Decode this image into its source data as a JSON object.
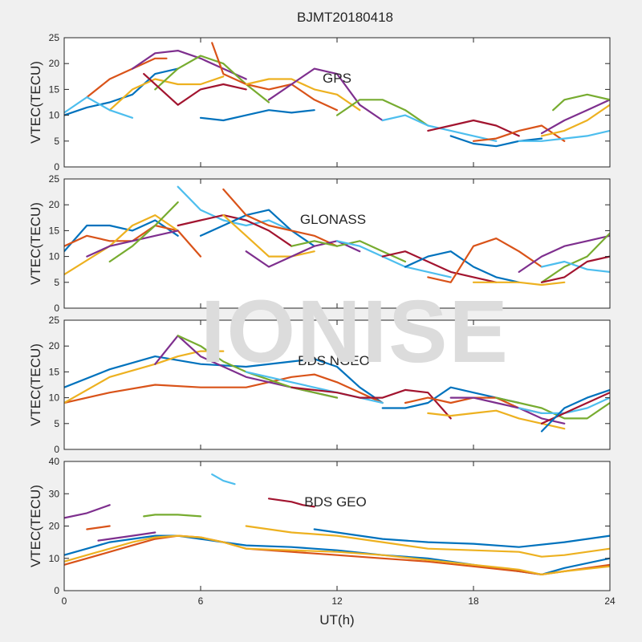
{
  "figure": {
    "title": "BJMT20180418",
    "watermark": "IONISE"
  },
  "colors": [
    "#0072BD",
    "#D95319",
    "#EDB120",
    "#7E2F8E",
    "#77AC30",
    "#4DBEEE",
    "#A2142F"
  ],
  "chart_data": [
    {
      "type": "line",
      "title": "BJMT20180418",
      "annotation": "GPS",
      "xlabel": "",
      "ylabel": "VTEC(TECU)",
      "xlim": [
        0,
        24
      ],
      "ylim": [
        0,
        25
      ],
      "xticks": [
        0,
        6,
        12,
        18,
        24
      ],
      "yticks": [
        0,
        5,
        10,
        15,
        20,
        25
      ],
      "series": [
        {
          "x": [
            0,
            1,
            2,
            3,
            4,
            5
          ],
          "y": [
            10,
            11.5,
            12.5,
            14,
            18,
            19
          ]
        },
        {
          "x": [
            1,
            2,
            3,
            4,
            4.5
          ],
          "y": [
            13.5,
            17,
            19,
            21,
            21
          ]
        },
        {
          "x": [
            2,
            3,
            4,
            5,
            6,
            7
          ],
          "y": [
            11,
            15,
            17,
            16,
            16,
            17.5
          ]
        },
        {
          "x": [
            3,
            4,
            5,
            6,
            7,
            8
          ],
          "y": [
            19,
            22,
            22.5,
            21,
            19,
            17
          ]
        },
        {
          "x": [
            4,
            5,
            6,
            7,
            8,
            9
          ],
          "y": [
            15,
            19,
            21.5,
            20,
            16,
            12.5
          ]
        },
        {
          "x": [
            0,
            1,
            2,
            3
          ],
          "y": [
            10.5,
            13.5,
            11,
            9.5
          ]
        },
        {
          "x": [
            3.5,
            5,
            6,
            7,
            8
          ],
          "y": [
            18,
            12,
            15,
            16,
            15
          ]
        },
        {
          "x": [
            6,
            7,
            8,
            9,
            10,
            11
          ],
          "y": [
            9.5,
            9,
            10,
            11,
            10.5,
            11
          ]
        },
        {
          "x": [
            6.5,
            7,
            8,
            9,
            10,
            11,
            12
          ],
          "y": [
            24,
            18,
            16,
            15,
            16,
            13,
            11
          ]
        },
        {
          "x": [
            8,
            9,
            10,
            11,
            12,
            13
          ],
          "y": [
            16,
            17,
            17,
            15,
            14,
            11
          ]
        },
        {
          "x": [
            9,
            10,
            11,
            12,
            13,
            14
          ],
          "y": [
            13,
            16,
            19,
            18,
            12,
            9
          ]
        },
        {
          "x": [
            12,
            13,
            14,
            15,
            16
          ],
          "y": [
            10,
            13,
            13,
            11,
            8
          ]
        },
        {
          "x": [
            14,
            15,
            16,
            17,
            18,
            19
          ],
          "y": [
            9,
            10,
            8,
            7,
            6,
            5
          ]
        },
        {
          "x": [
            16,
            17,
            18,
            19,
            20
          ],
          "y": [
            7,
            8,
            9,
            8,
            6
          ]
        },
        {
          "x": [
            17,
            18,
            19,
            20,
            21
          ],
          "y": [
            6,
            4.5,
            4,
            5,
            5.5
          ]
        },
        {
          "x": [
            18,
            19,
            20,
            21,
            22
          ],
          "y": [
            5,
            5.5,
            7,
            8,
            5
          ]
        },
        {
          "x": [
            21,
            22,
            23,
            24
          ],
          "y": [
            6,
            7,
            9,
            12
          ]
        },
        {
          "x": [
            21,
            22,
            23,
            24
          ],
          "y": [
            6.5,
            9,
            11,
            13
          ]
        },
        {
          "x": [
            21.5,
            22,
            23,
            24
          ],
          "y": [
            11,
            13,
            14,
            13
          ]
        },
        {
          "x": [
            20,
            21,
            22,
            23,
            24
          ],
          "y": [
            5,
            5,
            5.5,
            6,
            7
          ]
        }
      ]
    },
    {
      "type": "line",
      "annotation": "GLONASS",
      "xlabel": "",
      "ylabel": "VTEC(TECU)",
      "xlim": [
        0,
        24
      ],
      "ylim": [
        0,
        25
      ],
      "xticks": [
        0,
        6,
        12,
        18,
        24
      ],
      "yticks": [
        0,
        5,
        10,
        15,
        20,
        25
      ],
      "series": [
        {
          "x": [
            0,
            1,
            2,
            3,
            4,
            5
          ],
          "y": [
            11,
            16,
            16,
            15,
            17,
            14
          ]
        },
        {
          "x": [
            0,
            1,
            2,
            3,
            4,
            5,
            6
          ],
          "y": [
            12,
            14,
            13,
            13,
            16,
            15,
            10
          ]
        },
        {
          "x": [
            0,
            2,
            3,
            4,
            5
          ],
          "y": [
            6.5,
            12,
            16,
            18,
            15
          ]
        },
        {
          "x": [
            1,
            2,
            3,
            4,
            5
          ],
          "y": [
            10,
            12,
            13,
            14,
            15
          ]
        },
        {
          "x": [
            2,
            3,
            4,
            5
          ],
          "y": [
            9,
            12,
            16,
            20.5
          ]
        },
        {
          "x": [
            5,
            6,
            7,
            8,
            9,
            10
          ],
          "y": [
            23.5,
            19,
            17,
            16,
            17,
            15
          ]
        },
        {
          "x": [
            5,
            6,
            7,
            8,
            9,
            10
          ],
          "y": [
            16,
            17,
            18,
            17,
            15,
            12
          ]
        },
        {
          "x": [
            6,
            7,
            8,
            9,
            10,
            11
          ],
          "y": [
            14,
            16,
            18,
            19,
            15,
            12
          ]
        },
        {
          "x": [
            7,
            8,
            9,
            10,
            11,
            12
          ],
          "y": [
            23,
            18,
            16,
            15,
            14,
            12
          ]
        },
        {
          "x": [
            7,
            8,
            9,
            10,
            11
          ],
          "y": [
            18,
            14,
            10,
            10,
            11
          ]
        },
        {
          "x": [
            8,
            9,
            10,
            11,
            12,
            13
          ],
          "y": [
            11,
            8,
            10,
            12,
            13,
            11
          ]
        },
        {
          "x": [
            10,
            11,
            12,
            13,
            14,
            15
          ],
          "y": [
            12,
            13,
            12,
            13,
            11,
            9
          ]
        },
        {
          "x": [
            12,
            13,
            14,
            15,
            16,
            17
          ],
          "y": [
            13,
            12,
            10,
            8,
            7,
            6
          ]
        },
        {
          "x": [
            14,
            15,
            16,
            17,
            18,
            19
          ],
          "y": [
            10,
            11,
            9,
            7,
            6,
            5
          ]
        },
        {
          "x": [
            15,
            16,
            17,
            18,
            19,
            20
          ],
          "y": [
            8,
            10,
            11,
            8,
            6,
            5
          ]
        },
        {
          "x": [
            16,
            17,
            18,
            19,
            20,
            21
          ],
          "y": [
            6,
            5,
            12,
            13.5,
            11,
            8
          ]
        },
        {
          "x": [
            18,
            19,
            20,
            21,
            22
          ],
          "y": [
            5,
            5,
            5,
            4.5,
            5
          ]
        },
        {
          "x": [
            20,
            21,
            22,
            23,
            24
          ],
          "y": [
            7,
            10,
            12,
            13,
            14
          ]
        },
        {
          "x": [
            21,
            22,
            23,
            24
          ],
          "y": [
            5,
            8,
            10,
            14.5
          ]
        },
        {
          "x": [
            21,
            22,
            23,
            24
          ],
          "y": [
            8,
            9,
            7.5,
            7
          ]
        },
        {
          "x": [
            21,
            22,
            23,
            24
          ],
          "y": [
            5,
            6,
            9,
            10
          ]
        }
      ]
    },
    {
      "type": "line",
      "annotation": "BDS NGEO",
      "xlabel": "",
      "ylabel": "VTEC(TECU)",
      "xlim": [
        0,
        24
      ],
      "ylim": [
        0,
        25
      ],
      "xticks": [
        0,
        6,
        12,
        18,
        24
      ],
      "yticks": [
        0,
        5,
        10,
        15,
        20,
        25
      ],
      "series": [
        {
          "x": [
            0,
            2,
            4,
            6,
            8,
            10,
            11,
            12,
            13,
            14
          ],
          "y": [
            12,
            15.5,
            18,
            16.5,
            16,
            17,
            17.5,
            16,
            12,
            9
          ]
        },
        {
          "x": [
            0,
            2,
            4,
            6,
            8,
            10,
            11,
            12,
            14
          ],
          "y": [
            9,
            11,
            12.5,
            12,
            12,
            14,
            14.5,
            13,
            9
          ]
        },
        {
          "x": [
            0,
            2,
            4,
            5,
            6,
            7
          ],
          "y": [
            9,
            14,
            16.5,
            18,
            19,
            19
          ]
        },
        {
          "x": [
            4,
            5,
            6,
            8,
            10,
            12
          ],
          "y": [
            16.5,
            22,
            18,
            14,
            12,
            10
          ]
        },
        {
          "x": [
            5,
            6,
            7,
            8,
            10,
            12
          ],
          "y": [
            22,
            20,
            17,
            15,
            12,
            10
          ]
        },
        {
          "x": [
            8,
            10,
            12,
            14
          ],
          "y": [
            15,
            13,
            11,
            9
          ]
        },
        {
          "x": [
            10,
            12,
            13,
            14,
            15,
            16,
            17
          ],
          "y": [
            12,
            11,
            10,
            10,
            11.5,
            11,
            6
          ]
        },
        {
          "x": [
            14,
            15,
            16,
            17,
            18,
            19,
            20
          ],
          "y": [
            8,
            8,
            9,
            12,
            11,
            10,
            9
          ]
        },
        {
          "x": [
            15,
            16,
            17,
            18,
            19,
            20,
            21
          ],
          "y": [
            9,
            10,
            9,
            10,
            10,
            8,
            7
          ]
        },
        {
          "x": [
            16,
            17,
            18,
            19,
            20,
            21,
            22
          ],
          "y": [
            7,
            6.5,
            7,
            7.5,
            6,
            5,
            4
          ]
        },
        {
          "x": [
            17,
            18,
            19,
            20,
            21,
            22
          ],
          "y": [
            10,
            10,
            9,
            8,
            6,
            5
          ]
        },
        {
          "x": [
            19,
            20,
            21,
            22,
            23,
            24
          ],
          "y": [
            10,
            9,
            8,
            6,
            6,
            9
          ]
        },
        {
          "x": [
            20,
            21,
            22,
            23,
            24
          ],
          "y": [
            8,
            7,
            7,
            8,
            10
          ]
        },
        {
          "x": [
            21,
            22,
            23,
            24
          ],
          "y": [
            5,
            7,
            9,
            11
          ]
        },
        {
          "x": [
            21,
            22,
            23,
            24
          ],
          "y": [
            3.5,
            8,
            10,
            11.5
          ]
        }
      ]
    },
    {
      "type": "line",
      "annotation": "BDS GEO",
      "xlabel": "UT(h)",
      "ylabel": "VTEC(TECU)",
      "xlim": [
        0,
        24
      ],
      "ylim": [
        0,
        40
      ],
      "xticks": [
        0,
        6,
        12,
        18,
        24
      ],
      "yticks": [
        0,
        10,
        20,
        30,
        40
      ],
      "series": [
        {
          "x": [
            0,
            1,
            2,
            3,
            4,
            5,
            6,
            7,
            8,
            10,
            12,
            14,
            16,
            18,
            20,
            21,
            22,
            24
          ],
          "y": [
            11,
            13,
            15,
            16,
            17,
            17,
            16,
            15,
            14,
            13.5,
            12.5,
            11,
            10,
            8,
            6,
            5,
            7,
            10
          ]
        },
        {
          "x": [
            0,
            1,
            2,
            3,
            4,
            5,
            6,
            7,
            8,
            10,
            12,
            14,
            16,
            18,
            20,
            21,
            22,
            24
          ],
          "y": [
            8,
            10,
            12,
            14,
            16,
            17,
            16.5,
            15,
            13,
            12,
            11,
            10,
            9,
            7.5,
            6,
            5,
            6,
            8
          ]
        },
        {
          "x": [
            0,
            1,
            2,
            3,
            4,
            5,
            6,
            7,
            8,
            10,
            12,
            14,
            16,
            18,
            20,
            21,
            22,
            24
          ],
          "y": [
            9,
            11,
            13,
            15,
            16.5,
            17,
            16.5,
            15,
            13,
            12.5,
            12,
            11,
            9.5,
            8,
            6.5,
            5,
            6,
            7.5
          ]
        },
        {
          "x": [
            0,
            1,
            2
          ],
          "y": [
            22.5,
            24,
            26.5
          ]
        },
        {
          "x": [
            3.5,
            4,
            5,
            6
          ],
          "y": [
            23,
            23.5,
            23.5,
            23
          ]
        },
        {
          "x": [
            6.5,
            7,
            7.5
          ],
          "y": [
            36,
            34,
            33
          ]
        },
        {
          "x": [
            9,
            10,
            10.5,
            11
          ],
          "y": [
            28.5,
            27.5,
            26.5,
            26
          ]
        },
        {
          "x": [
            11,
            12,
            14,
            16,
            18,
            20,
            22,
            24
          ],
          "y": [
            19,
            18,
            16,
            15,
            14.5,
            13.5,
            15,
            17
          ]
        },
        {
          "x": [
            1,
            1.5,
            2
          ],
          "y": [
            19,
            19.5,
            20
          ]
        },
        {
          "x": [
            8,
            10,
            12,
            14,
            16,
            18,
            20,
            21,
            22,
            24
          ],
          "y": [
            20,
            18,
            17,
            15,
            13,
            12.5,
            12,
            10.5,
            11,
            13
          ]
        },
        {
          "x": [
            1.5,
            2,
            3,
            4
          ],
          "y": [
            15.5,
            16,
            17,
            18
          ]
        }
      ]
    }
  ]
}
